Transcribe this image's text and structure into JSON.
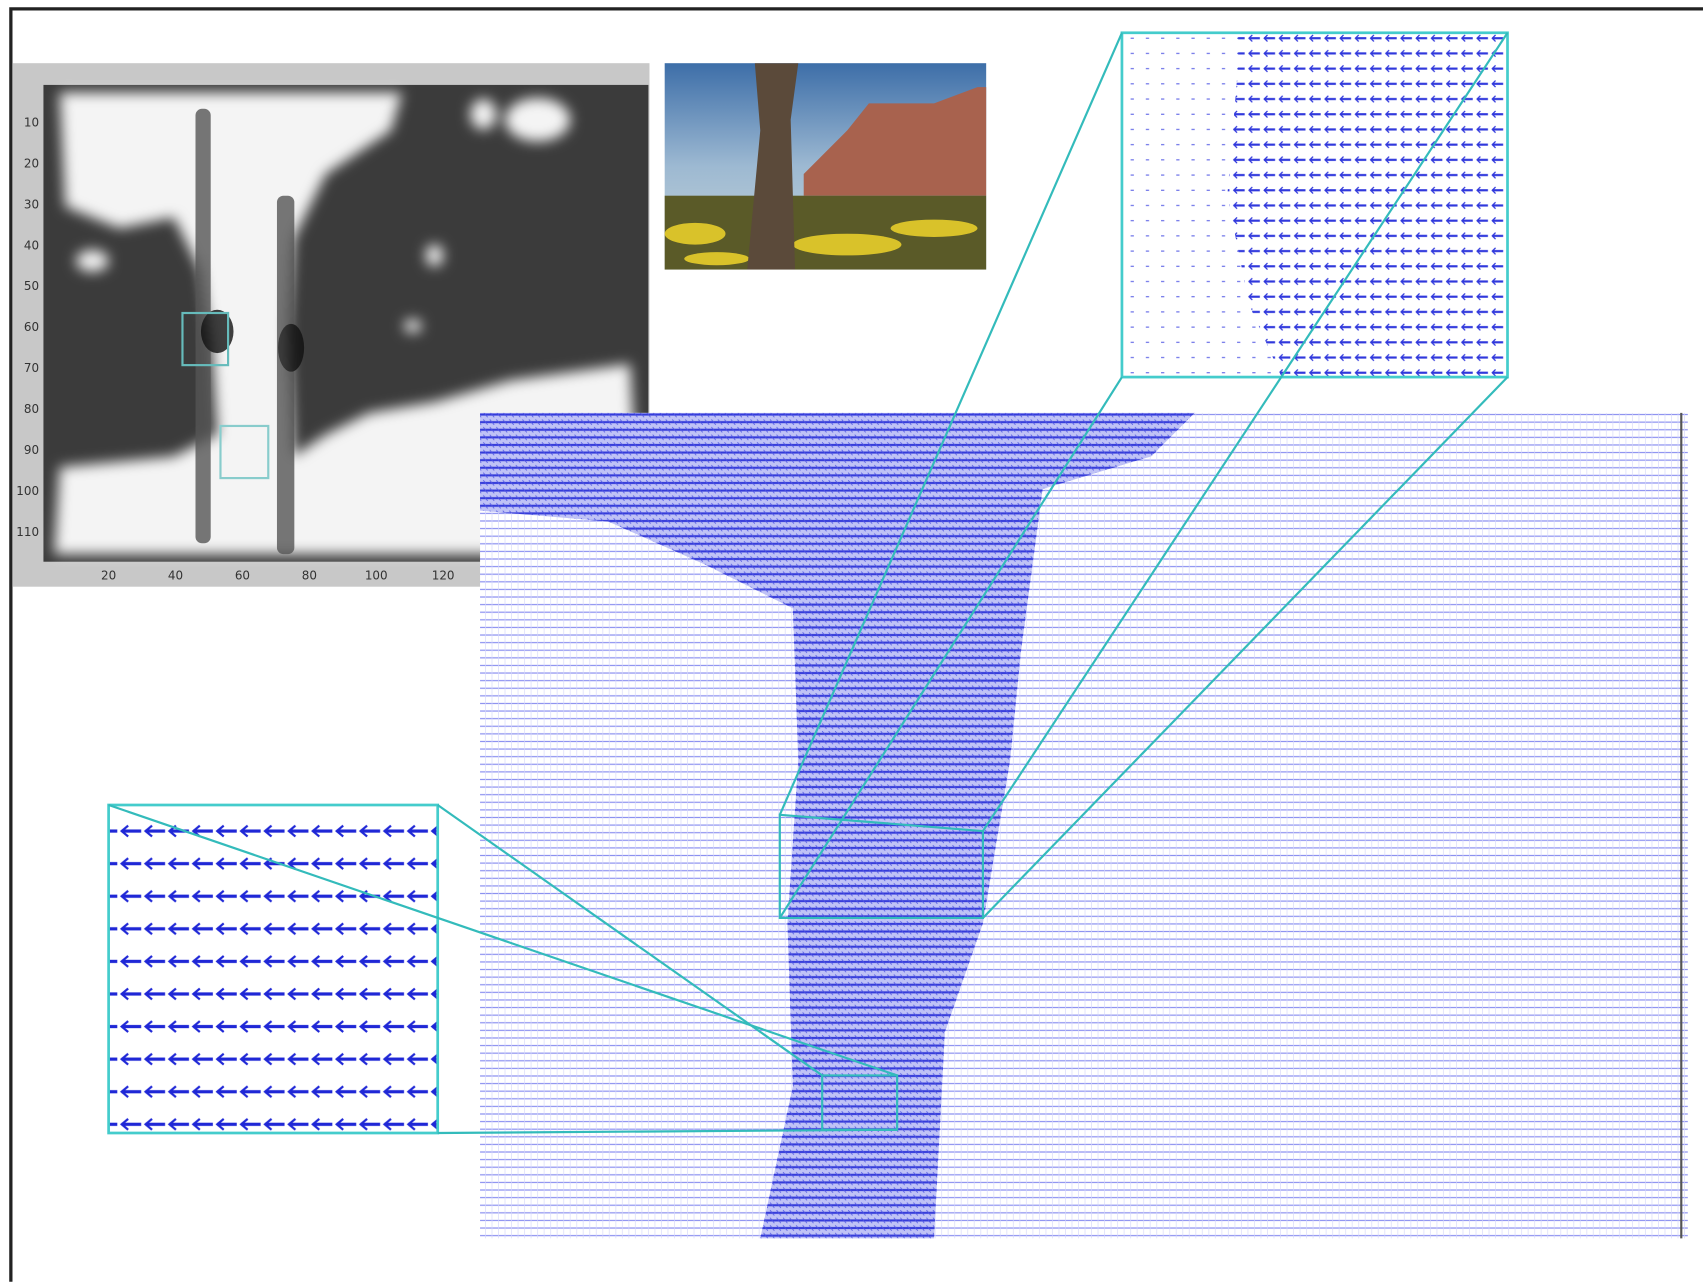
{
  "depth_map": {
    "xticks": [
      "20",
      "40",
      "60",
      "80",
      "100",
      "120"
    ],
    "yticks": [
      "10",
      "20",
      "30",
      "40",
      "50",
      "60",
      "70",
      "80",
      "90",
      "100",
      "110"
    ]
  }
}
